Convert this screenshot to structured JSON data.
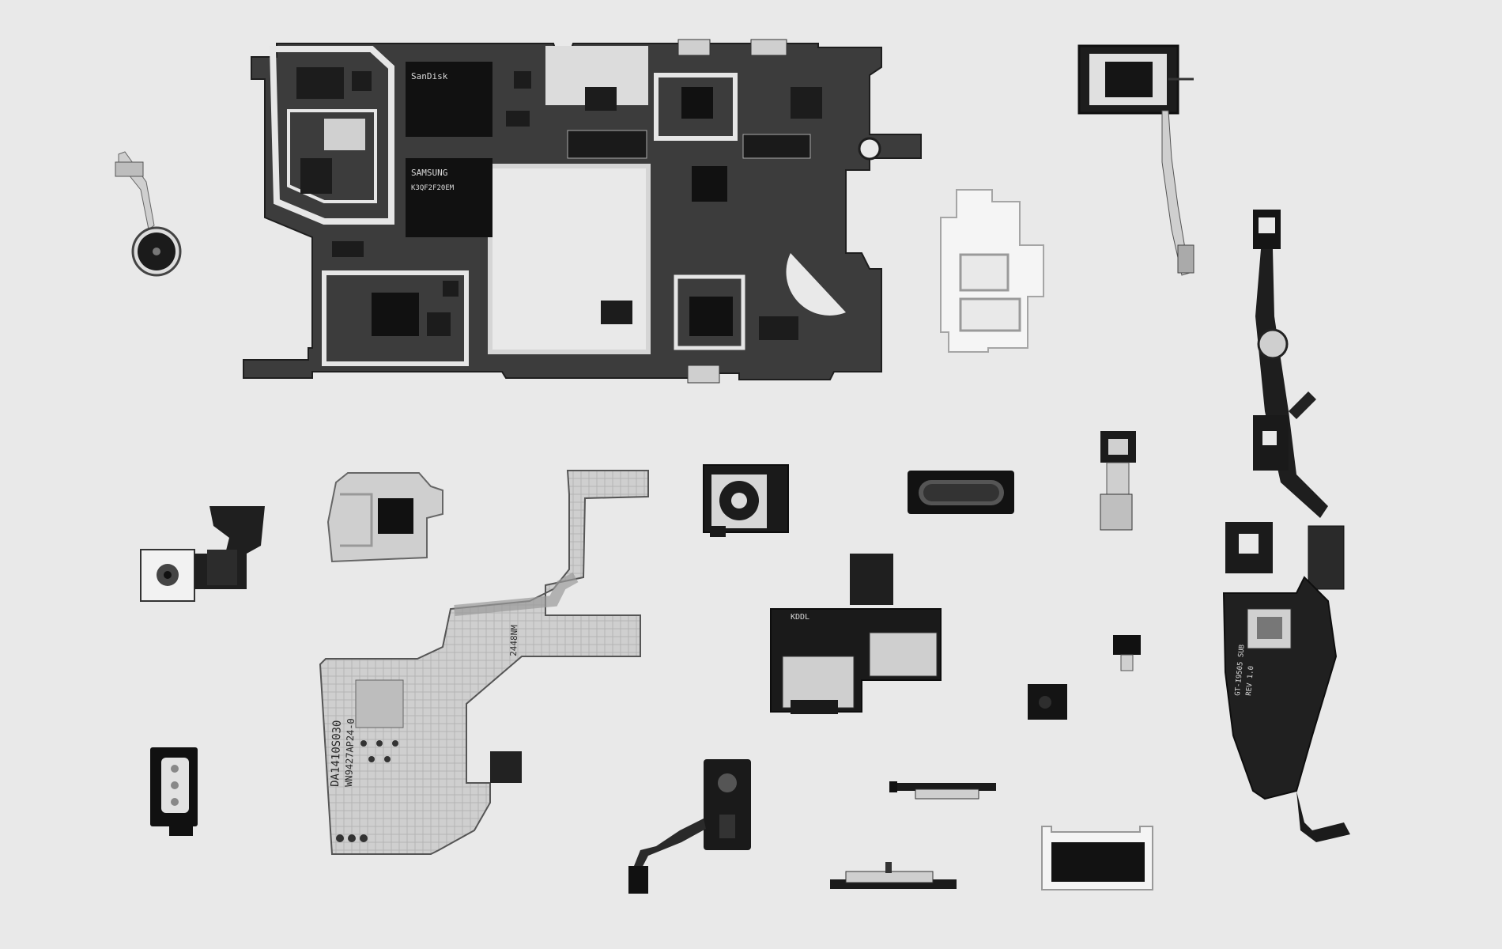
{
  "scene": {
    "background": "#e9e9e9",
    "tone": "grayscale"
  },
  "printed_text": {
    "chip_1": "SanDisk",
    "chip_2": "SAMSUNG",
    "chip_2_code": "K3QF2F20EM",
    "flex_main": "GT-I9505 SUB",
    "flex_main_2": "REV 1.0",
    "board_code": "DA1410S030",
    "board_code_2": "WN9427AP24-0",
    "flex_code": "2448NM",
    "label_kddl": "KDDL"
  }
}
